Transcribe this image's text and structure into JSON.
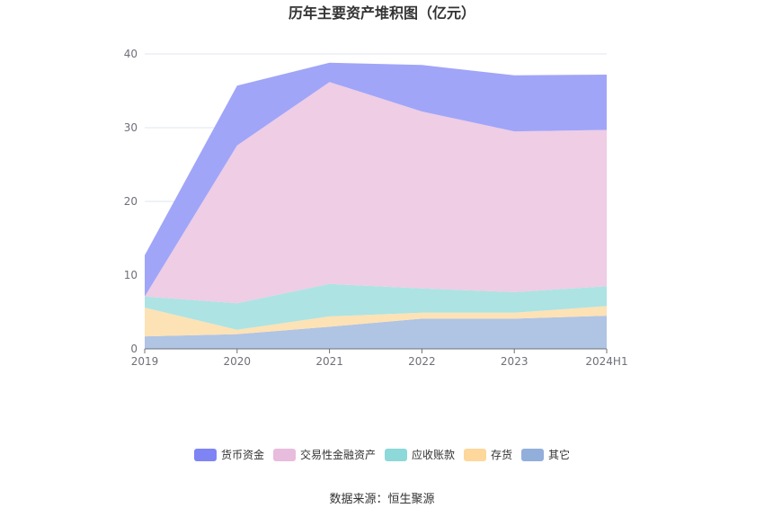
{
  "chart_data": {
    "type": "area",
    "stacked": true,
    "title": "历年主要资产堆积图（亿元）",
    "xlabel": "",
    "ylabel": "",
    "categories": [
      "2019",
      "2020",
      "2021",
      "2022",
      "2023",
      "2024H1"
    ],
    "ylim": [
      0,
      40
    ],
    "yticks": [
      0,
      10,
      20,
      30,
      40
    ],
    "grid": true,
    "legend_position": "bottom",
    "series": [
      {
        "name": "其它",
        "color": "#b0c4e4",
        "legend_color": "#92aedb",
        "values": [
          1.7,
          2.0,
          3.0,
          4.1,
          4.1,
          4.5
        ]
      },
      {
        "name": "存货",
        "color": "#fde2b5",
        "legend_color": "#fdd79b",
        "values": [
          3.9,
          0.6,
          1.4,
          0.8,
          0.8,
          1.3
        ]
      },
      {
        "name": "应收账款",
        "color": "#ade3e3",
        "legend_color": "#8dd8d8",
        "values": [
          1.5,
          3.6,
          4.4,
          3.3,
          2.8,
          2.7
        ]
      },
      {
        "name": "交易性金融资产",
        "color": "#eecde5",
        "legend_color": "#e8bcdc",
        "values": [
          0.0,
          21.4,
          27.4,
          24.0,
          21.8,
          21.2
        ]
      },
      {
        "name": "货币资金",
        "color": "#a0a5f8",
        "legend_color": "#7e84f4",
        "values": [
          5.6,
          8.1,
          2.6,
          6.3,
          7.6,
          7.5
        ]
      }
    ],
    "legend_order": [
      "货币资金",
      "交易性金融资产",
      "应收账款",
      "存货",
      "其它"
    ]
  },
  "footer": {
    "source": "数据来源：恒生聚源"
  }
}
